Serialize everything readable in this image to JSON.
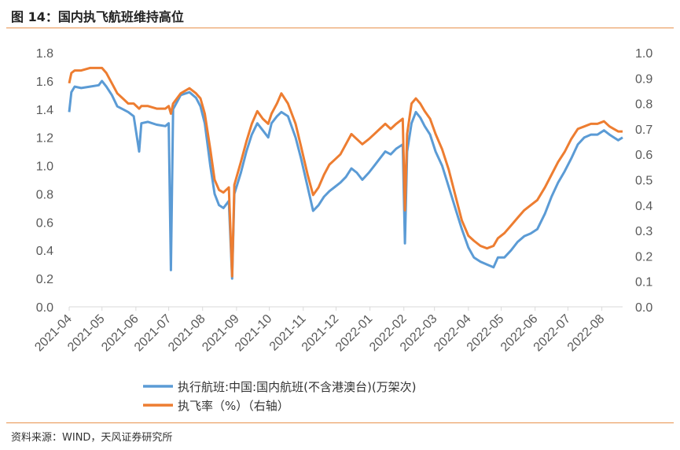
{
  "title": "图 14：国内执飞航班维持高位",
  "source": "资料来源：WIND，天风证券研究所",
  "chart_data": {
    "type": "line",
    "x_tick_labels": [
      "2021-04",
      "2021-05",
      "2021-06",
      "2021-07",
      "2021-08",
      "2021-09",
      "2021-10",
      "2021-11",
      "2021-12",
      "2022-01",
      "2022-02",
      "2022-03",
      "2022-04",
      "2022-05",
      "2022-06",
      "2022-07",
      "2022-08"
    ],
    "left_axis": {
      "ylim": [
        0,
        1.8
      ],
      "ticks": [
        "0.0",
        "0.2",
        "0.4",
        "0.6",
        "0.8",
        "1.0",
        "1.2",
        "1.4",
        "1.6",
        "1.8"
      ]
    },
    "right_axis": {
      "ylim": [
        0,
        1.0
      ],
      "ticks": [
        "0.0",
        "0.1",
        "0.2",
        "0.3",
        "0.4",
        "0.5",
        "0.6",
        "0.7",
        "0.8",
        "0.9",
        "1.0"
      ]
    },
    "series": [
      {
        "name": "执行航班:中国:国内航班(不含港澳台)(万架次)",
        "axis": "left",
        "color": "#5b9bd5",
        "points": [
          [
            "2021-04-01",
            1.38
          ],
          [
            "2021-04-03",
            1.52
          ],
          [
            "2021-04-06",
            1.56
          ],
          [
            "2021-04-12",
            1.55
          ],
          [
            "2021-04-20",
            1.56
          ],
          [
            "2021-04-28",
            1.57
          ],
          [
            "2021-05-01",
            1.6
          ],
          [
            "2021-05-05",
            1.56
          ],
          [
            "2021-05-10",
            1.5
          ],
          [
            "2021-05-15",
            1.42
          ],
          [
            "2021-05-20",
            1.4
          ],
          [
            "2021-05-25",
            1.38
          ],
          [
            "2021-05-30",
            1.35
          ],
          [
            "2021-06-04",
            1.1
          ],
          [
            "2021-06-06",
            1.3
          ],
          [
            "2021-06-12",
            1.31
          ],
          [
            "2021-06-20",
            1.29
          ],
          [
            "2021-06-28",
            1.28
          ],
          [
            "2021-07-01",
            1.3
          ],
          [
            "2021-07-03",
            0.26
          ],
          [
            "2021-07-05",
            1.4
          ],
          [
            "2021-07-12",
            1.5
          ],
          [
            "2021-07-20",
            1.52
          ],
          [
            "2021-07-26",
            1.48
          ],
          [
            "2021-07-30",
            1.42
          ],
          [
            "2021-08-03",
            1.3
          ],
          [
            "2021-08-08",
            1.0
          ],
          [
            "2021-08-12",
            0.8
          ],
          [
            "2021-08-16",
            0.72
          ],
          [
            "2021-08-20",
            0.7
          ],
          [
            "2021-08-25",
            0.75
          ],
          [
            "2021-08-28",
            0.2
          ],
          [
            "2021-08-30",
            0.8
          ],
          [
            "2021-09-05",
            0.95
          ],
          [
            "2021-09-10",
            1.1
          ],
          [
            "2021-09-15",
            1.22
          ],
          [
            "2021-09-20",
            1.3
          ],
          [
            "2021-09-25",
            1.25
          ],
          [
            "2021-09-30",
            1.2
          ],
          [
            "2021-10-03",
            1.3
          ],
          [
            "2021-10-08",
            1.35
          ],
          [
            "2021-10-12",
            1.38
          ],
          [
            "2021-10-18",
            1.35
          ],
          [
            "2021-10-25",
            1.2
          ],
          [
            "2021-10-30",
            1.05
          ],
          [
            "2021-11-05",
            0.85
          ],
          [
            "2021-11-10",
            0.68
          ],
          [
            "2021-11-15",
            0.72
          ],
          [
            "2021-11-20",
            0.78
          ],
          [
            "2021-11-25",
            0.82
          ],
          [
            "2021-11-30",
            0.85
          ],
          [
            "2021-12-05",
            0.88
          ],
          [
            "2021-12-10",
            0.92
          ],
          [
            "2021-12-15",
            0.98
          ],
          [
            "2021-12-20",
            0.95
          ],
          [
            "2021-12-25",
            0.9
          ],
          [
            "2021-12-31",
            0.95
          ],
          [
            "2022-01-05",
            1.0
          ],
          [
            "2022-01-10",
            1.05
          ],
          [
            "2022-01-15",
            1.1
          ],
          [
            "2022-01-20",
            1.08
          ],
          [
            "2022-01-25",
            1.12
          ],
          [
            "2022-01-31",
            1.15
          ],
          [
            "2022-02-02",
            0.45
          ],
          [
            "2022-02-04",
            1.1
          ],
          [
            "2022-02-08",
            1.3
          ],
          [
            "2022-02-12",
            1.38
          ],
          [
            "2022-02-16",
            1.34
          ],
          [
            "2022-02-20",
            1.28
          ],
          [
            "2022-02-25",
            1.22
          ],
          [
            "2022-03-02",
            1.1
          ],
          [
            "2022-03-08",
            1.0
          ],
          [
            "2022-03-14",
            0.85
          ],
          [
            "2022-03-20",
            0.7
          ],
          [
            "2022-03-26",
            0.55
          ],
          [
            "2022-04-01",
            0.42
          ],
          [
            "2022-04-06",
            0.35
          ],
          [
            "2022-04-12",
            0.32
          ],
          [
            "2022-04-18",
            0.3
          ],
          [
            "2022-04-24",
            0.28
          ],
          [
            "2022-04-28",
            0.35
          ],
          [
            "2022-05-04",
            0.35
          ],
          [
            "2022-05-10",
            0.4
          ],
          [
            "2022-05-16",
            0.46
          ],
          [
            "2022-05-22",
            0.5
          ],
          [
            "2022-05-28",
            0.52
          ],
          [
            "2022-06-03",
            0.55
          ],
          [
            "2022-06-10",
            0.66
          ],
          [
            "2022-06-16",
            0.78
          ],
          [
            "2022-06-22",
            0.88
          ],
          [
            "2022-06-28",
            0.96
          ],
          [
            "2022-07-04",
            1.05
          ],
          [
            "2022-07-10",
            1.15
          ],
          [
            "2022-07-16",
            1.2
          ],
          [
            "2022-07-22",
            1.22
          ],
          [
            "2022-07-28",
            1.22
          ],
          [
            "2022-08-03",
            1.25
          ],
          [
            "2022-08-08",
            1.22
          ],
          [
            "2022-08-12",
            1.2
          ],
          [
            "2022-08-16",
            1.18
          ],
          [
            "2022-08-20",
            1.2
          ]
        ]
      },
      {
        "name": "执飞率（%）（右轴）",
        "axis": "right",
        "color": "#ed7d31",
        "points": [
          [
            "2021-04-01",
            0.88
          ],
          [
            "2021-04-03",
            0.92
          ],
          [
            "2021-04-06",
            0.93
          ],
          [
            "2021-04-12",
            0.93
          ],
          [
            "2021-04-20",
            0.94
          ],
          [
            "2021-04-28",
            0.94
          ],
          [
            "2021-05-01",
            0.94
          ],
          [
            "2021-05-05",
            0.92
          ],
          [
            "2021-05-10",
            0.88
          ],
          [
            "2021-05-15",
            0.84
          ],
          [
            "2021-05-20",
            0.82
          ],
          [
            "2021-05-25",
            0.8
          ],
          [
            "2021-05-30",
            0.8
          ],
          [
            "2021-06-04",
            0.78
          ],
          [
            "2021-06-06",
            0.79
          ],
          [
            "2021-06-12",
            0.79
          ],
          [
            "2021-06-20",
            0.78
          ],
          [
            "2021-06-28",
            0.78
          ],
          [
            "2021-07-01",
            0.79
          ],
          [
            "2021-07-03",
            0.76
          ],
          [
            "2021-07-05",
            0.8
          ],
          [
            "2021-07-12",
            0.84
          ],
          [
            "2021-07-20",
            0.86
          ],
          [
            "2021-07-26",
            0.84
          ],
          [
            "2021-07-30",
            0.82
          ],
          [
            "2021-08-03",
            0.76
          ],
          [
            "2021-08-08",
            0.62
          ],
          [
            "2021-08-12",
            0.5
          ],
          [
            "2021-08-16",
            0.46
          ],
          [
            "2021-08-20",
            0.45
          ],
          [
            "2021-08-25",
            0.47
          ],
          [
            "2021-08-28",
            0.12
          ],
          [
            "2021-08-30",
            0.48
          ],
          [
            "2021-09-05",
            0.57
          ],
          [
            "2021-09-10",
            0.65
          ],
          [
            "2021-09-15",
            0.72
          ],
          [
            "2021-09-20",
            0.77
          ],
          [
            "2021-09-25",
            0.74
          ],
          [
            "2021-09-30",
            0.72
          ],
          [
            "2021-10-03",
            0.76
          ],
          [
            "2021-10-08",
            0.8
          ],
          [
            "2021-10-12",
            0.84
          ],
          [
            "2021-10-18",
            0.8
          ],
          [
            "2021-10-25",
            0.72
          ],
          [
            "2021-10-30",
            0.63
          ],
          [
            "2021-11-05",
            0.52
          ],
          [
            "2021-11-10",
            0.44
          ],
          [
            "2021-11-15",
            0.47
          ],
          [
            "2021-11-20",
            0.52
          ],
          [
            "2021-11-25",
            0.56
          ],
          [
            "2021-11-30",
            0.58
          ],
          [
            "2021-12-05",
            0.6
          ],
          [
            "2021-12-10",
            0.64
          ],
          [
            "2021-12-15",
            0.68
          ],
          [
            "2021-12-20",
            0.66
          ],
          [
            "2021-12-25",
            0.64
          ],
          [
            "2021-12-31",
            0.66
          ],
          [
            "2022-01-05",
            0.68
          ],
          [
            "2022-01-10",
            0.7
          ],
          [
            "2022-01-15",
            0.72
          ],
          [
            "2022-01-20",
            0.7
          ],
          [
            "2022-01-25",
            0.72
          ],
          [
            "2022-01-31",
            0.74
          ],
          [
            "2022-02-02",
            0.38
          ],
          [
            "2022-02-04",
            0.68
          ],
          [
            "2022-02-08",
            0.8
          ],
          [
            "2022-02-12",
            0.82
          ],
          [
            "2022-02-16",
            0.8
          ],
          [
            "2022-02-20",
            0.77
          ],
          [
            "2022-02-25",
            0.74
          ],
          [
            "2022-03-02",
            0.68
          ],
          [
            "2022-03-08",
            0.62
          ],
          [
            "2022-03-14",
            0.54
          ],
          [
            "2022-03-20",
            0.44
          ],
          [
            "2022-03-26",
            0.34
          ],
          [
            "2022-04-01",
            0.28
          ],
          [
            "2022-04-06",
            0.26
          ],
          [
            "2022-04-12",
            0.24
          ],
          [
            "2022-04-18",
            0.23
          ],
          [
            "2022-04-24",
            0.24
          ],
          [
            "2022-04-28",
            0.27
          ],
          [
            "2022-05-04",
            0.29
          ],
          [
            "2022-05-10",
            0.32
          ],
          [
            "2022-05-16",
            0.35
          ],
          [
            "2022-05-22",
            0.38
          ],
          [
            "2022-05-28",
            0.4
          ],
          [
            "2022-06-03",
            0.42
          ],
          [
            "2022-06-10",
            0.47
          ],
          [
            "2022-06-16",
            0.52
          ],
          [
            "2022-06-22",
            0.57
          ],
          [
            "2022-06-28",
            0.61
          ],
          [
            "2022-07-04",
            0.66
          ],
          [
            "2022-07-10",
            0.7
          ],
          [
            "2022-07-16",
            0.71
          ],
          [
            "2022-07-22",
            0.72
          ],
          [
            "2022-07-28",
            0.72
          ],
          [
            "2022-08-03",
            0.73
          ],
          [
            "2022-08-08",
            0.71
          ],
          [
            "2022-08-12",
            0.7
          ],
          [
            "2022-08-16",
            0.69
          ],
          [
            "2022-08-20",
            0.69
          ]
        ]
      }
    ],
    "grid": false,
    "legend_position": "bottom"
  }
}
